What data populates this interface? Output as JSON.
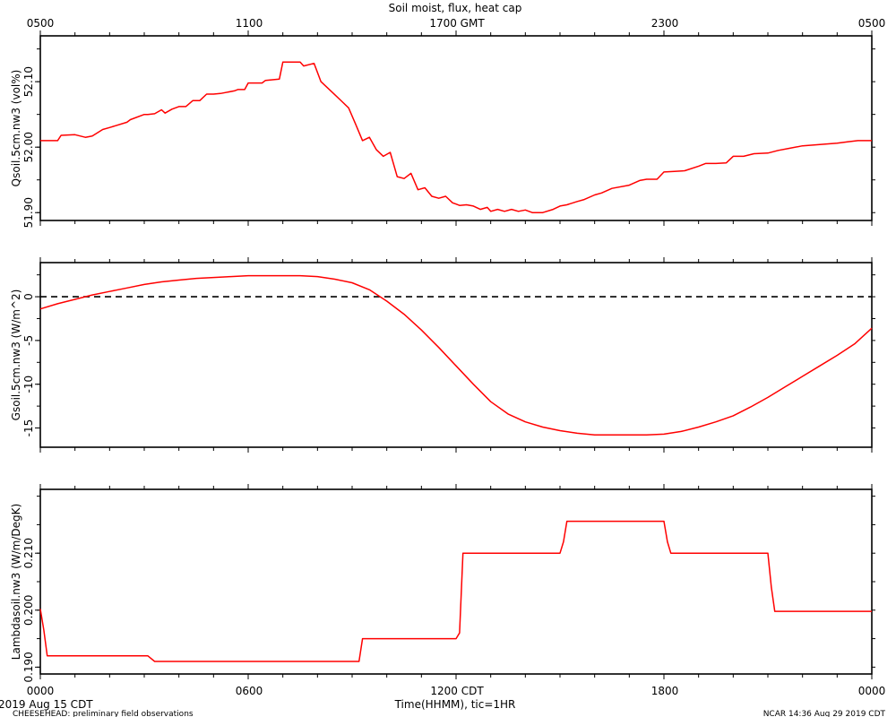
{
  "page": {
    "title": "Soil moist, flux, heat cap",
    "start_date": "2019 Aug 15 CDT",
    "footer_left": "CHEESEHEAD: preliminary field observations",
    "footer_right": "NCAR 14:36 Aug 29 2019 CDT"
  },
  "colors": {
    "series": "#ff0000",
    "axes": "#000000",
    "background": "#ffffff"
  },
  "chart_data": [
    {
      "type": "line",
      "title": "Soil moist, flux, heat cap",
      "top_axis": {
        "label": "GMT",
        "ticks": [
          "0500",
          "1100",
          "1700 GMT",
          "2300",
          "0500"
        ]
      },
      "ylabel": "Qsoil.5cm.nw3 (vol%)",
      "yticks": [
        "52.10",
        "52.00",
        "51.90"
      ],
      "ylim": [
        51.888,
        52.17
      ],
      "xlim": [
        0,
        24
      ],
      "grid": false,
      "series": [
        {
          "x": [
            0,
            0.5,
            0.6,
            1.0,
            1.3,
            1.5,
            1.8,
            2.0,
            2.5,
            2.6,
            3.0,
            3.1,
            3.3,
            3.5,
            3.6,
            3.8,
            4.0,
            4.2,
            4.4,
            4.6,
            4.8,
            5.0,
            5.2,
            5.6,
            5.7,
            5.9,
            6.0,
            6.4,
            6.5,
            6.9,
            7.0,
            7.5,
            7.6,
            7.9,
            8.1,
            8.5,
            8.7,
            8.9,
            9.1,
            9.3,
            9.5,
            9.7,
            9.9,
            10.1,
            10.3,
            10.5,
            10.7,
            10.9,
            11.1,
            11.3,
            11.5,
            11.7,
            11.9,
            12.0,
            12.1,
            12.3,
            12.5,
            12.7,
            12.9,
            13.0,
            13.2,
            13.4,
            13.6,
            13.8,
            14.0,
            14.2,
            14.5,
            14.8,
            15.0,
            15.2,
            15.5,
            15.7,
            16.0,
            16.2,
            16.5,
            17.0,
            17.3,
            17.5,
            17.8,
            18.0,
            18.3,
            18.6,
            19.0,
            19.2,
            19.5,
            19.8,
            20.0,
            20.3,
            20.6,
            21.0,
            21.3,
            21.6,
            22.0,
            22.5,
            23.0,
            23.3,
            23.6,
            24.0
          ],
          "values": [
            52.01,
            52.01,
            52.018,
            52.019,
            52.015,
            52.017,
            52.027,
            52.03,
            52.038,
            52.042,
            52.05,
            52.05,
            52.051,
            52.057,
            52.052,
            52.058,
            52.062,
            52.062,
            52.071,
            52.071,
            52.081,
            52.081,
            52.082,
            52.086,
            52.088,
            52.088,
            52.098,
            52.098,
            52.102,
            52.104,
            52.13,
            52.13,
            52.124,
            52.128,
            52.1,
            52.08,
            52.07,
            52.06,
            52.035,
            52.01,
            52.015,
            51.996,
            51.986,
            51.992,
            51.955,
            51.952,
            51.96,
            51.935,
            51.938,
            51.925,
            51.922,
            51.925,
            51.915,
            51.913,
            51.911,
            51.912,
            51.91,
            51.905,
            51.908,
            51.902,
            51.905,
            51.902,
            51.905,
            51.902,
            51.904,
            51.9,
            51.9,
            51.905,
            51.91,
            51.912,
            51.917,
            51.92,
            51.927,
            51.93,
            51.937,
            51.942,
            51.949,
            51.951,
            51.951,
            51.962,
            51.963,
            51.964,
            51.971,
            51.975,
            51.975,
            51.976,
            51.986,
            51.986,
            51.99,
            51.991,
            51.995,
            51.998,
            52.002,
            52.004,
            52.006,
            52.008,
            52.01,
            52.01
          ]
        }
      ]
    },
    {
      "type": "line",
      "ylabel": "Gsoil.5cm.nw3 (W/m^2)",
      "yticks": [
        "0",
        "-5",
        "-10",
        "-15"
      ],
      "ylim": [
        -17.2,
        3.9
      ],
      "xlim": [
        0,
        24
      ],
      "grid": false,
      "reference_line": {
        "y": 0,
        "style": "dashed"
      },
      "series": [
        {
          "x": [
            0,
            0.5,
            1.0,
            1.5,
            2.0,
            2.5,
            3.0,
            3.5,
            4.0,
            4.5,
            5.0,
            5.5,
            6.0,
            6.5,
            7.0,
            7.5,
            8.0,
            8.5,
            9.0,
            9.5,
            10.0,
            10.5,
            11.0,
            11.5,
            12.0,
            12.5,
            13.0,
            13.5,
            14.0,
            14.5,
            15.0,
            15.5,
            16.0,
            16.5,
            17.0,
            17.5,
            18.0,
            18.5,
            19.0,
            19.5,
            20.0,
            20.5,
            21.0,
            21.5,
            22.0,
            22.5,
            23.0,
            23.5,
            24.0
          ],
          "values": [
            -1.4,
            -0.8,
            -0.3,
            0.2,
            0.6,
            1.0,
            1.4,
            1.7,
            1.9,
            2.1,
            2.2,
            2.3,
            2.4,
            2.4,
            2.4,
            2.4,
            2.3,
            2.0,
            1.6,
            0.8,
            -0.5,
            -2.0,
            -3.8,
            -5.8,
            -7.9,
            -10.0,
            -12.0,
            -13.4,
            -14.3,
            -14.9,
            -15.3,
            -15.6,
            -15.8,
            -15.8,
            -15.8,
            -15.8,
            -15.7,
            -15.4,
            -14.9,
            -14.3,
            -13.6,
            -12.6,
            -11.5,
            -10.3,
            -9.1,
            -7.9,
            -6.7,
            -5.4,
            -3.6
          ]
        }
      ]
    },
    {
      "type": "line",
      "ylabel": "Lambdasoil.nw3 (W/m/DegK)",
      "yticks": [
        "0.210",
        "0.200",
        "0.190"
      ],
      "ylim": [
        0.1888,
        0.2212
      ],
      "xlim": [
        0,
        24
      ],
      "grid": false,
      "bottom_axis": {
        "label": "Time(HHMM), tic=1HR",
        "ticks": [
          "0000",
          "0600",
          "1200 CDT",
          "1800",
          "0000"
        ]
      },
      "series": [
        {
          "x": [
            0,
            0.1,
            0.2,
            0.25,
            3.1,
            3.3,
            9.2,
            9.3,
            12.0,
            12.1,
            12.2,
            15.0,
            15.1,
            15.2,
            18.0,
            18.1,
            18.2,
            21.0,
            21.1,
            21.2,
            24.0
          ],
          "values": [
            0.2002,
            0.1965,
            0.192,
            0.192,
            0.192,
            0.191,
            0.191,
            0.195,
            0.195,
            0.196,
            0.21,
            0.21,
            0.212,
            0.2156,
            0.2156,
            0.212,
            0.21,
            0.21,
            0.204,
            0.1998,
            0.1998
          ]
        }
      ]
    }
  ]
}
